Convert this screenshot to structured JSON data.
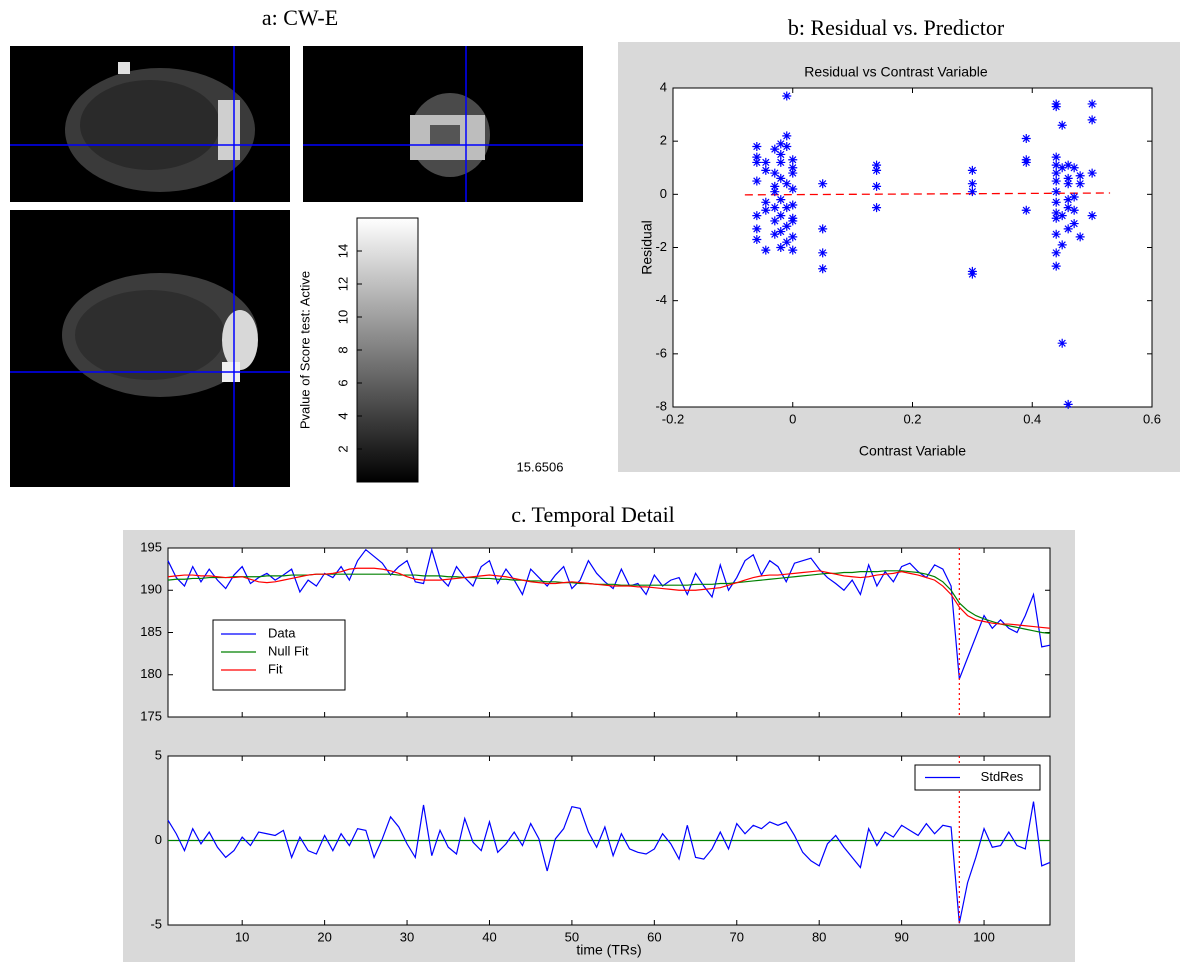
{
  "brain_views": {
    "title": "a: CW-E",
    "colorbar": {
      "label": "Pvalue of Score test: Active",
      "lim": [
        0,
        16
      ],
      "ticks": [
        2,
        4,
        6,
        8,
        10,
        12,
        14
      ]
    },
    "value_label": "15.6506"
  },
  "chart_data": [
    {
      "type": "scatter",
      "panel_title": "b: Residual vs. Predictor",
      "title": "Residual vs Contrast Variable",
      "x_label": "Contrast Variable",
      "y_label": "Residual",
      "xlim": [
        -0.2,
        0.6
      ],
      "xticks": [
        -0.2,
        0,
        0.2,
        0.4,
        0.6
      ],
      "ylim": [
        -8,
        4
      ],
      "yticks": [
        -8,
        -6,
        -4,
        -2,
        0,
        2,
        4
      ],
      "color": "#0000ff",
      "x": [
        -0.06,
        -0.06,
        -0.06,
        -0.06,
        -0.06,
        -0.06,
        -0.06,
        -0.045,
        -0.045,
        -0.045,
        -0.045,
        -0.045,
        -0.03,
        -0.03,
        -0.03,
        -0.03,
        -0.03,
        -0.03,
        -0.03,
        -0.02,
        -0.02,
        -0.02,
        -0.02,
        -0.02,
        -0.02,
        -0.02,
        -0.02,
        -0.01,
        -0.01,
        -0.01,
        -0.01,
        -0.01,
        -0.01,
        -0.01,
        0,
        0,
        0,
        0,
        0,
        0,
        0,
        0,
        0,
        0.05,
        0.05,
        0.05,
        0.05,
        0.14,
        0.14,
        0.14,
        0.14,
        0.3,
        0.3,
        0.3,
        0.3,
        0.3,
        0.39,
        0.39,
        0.39,
        0.39,
        0.44,
        0.44,
        0.44,
        0.44,
        0.44,
        0.44,
        0.44,
        0.44,
        0.44,
        0.44,
        0.44,
        0.44,
        0.44,
        0.45,
        0.45,
        0.45,
        0.45,
        0.45,
        0.46,
        0.46,
        0.46,
        0.46,
        0.46,
        0.46,
        0.46,
        0.47,
        0.47,
        0.47,
        0.47,
        0.48,
        0.48,
        0.48,
        0.5,
        0.5,
        0.5,
        0.5
      ],
      "y": [
        1.8,
        1.4,
        1.2,
        0.5,
        -1.7,
        -1.3,
        -0.8,
        -2.1,
        -0.6,
        -0.3,
        1.2,
        0.9,
        1.7,
        0.8,
        0.3,
        -0.5,
        -1.5,
        -1.0,
        0.1,
        1.9,
        1.5,
        1.2,
        0.6,
        -0.8,
        -1.4,
        -2.0,
        -0.2,
        3.7,
        2.2,
        1.8,
        0.4,
        -0.5,
        -1.2,
        -1.8,
        1.0,
        0.8,
        0.2,
        -0.4,
        -0.9,
        -1.0,
        -1.6,
        -2.1,
        1.3,
        0.4,
        -1.3,
        -2.2,
        -2.8,
        1.1,
        0.9,
        0.3,
        -0.5,
        0.9,
        0.4,
        0.1,
        -2.9,
        -3.0,
        2.1,
        1.3,
        1.2,
        -0.6,
        3.4,
        3.3,
        1.4,
        1.1,
        0.8,
        0.5,
        -0.3,
        -0.7,
        -0.9,
        -1.5,
        -2.2,
        -2.7,
        0.1,
        2.6,
        1.0,
        -5.6,
        -1.9,
        -0.8,
        1.1,
        0.6,
        -0.2,
        -0.5,
        -1.3,
        -7.9,
        0.4,
        1.0,
        -0.1,
        -0.6,
        -1.1,
        0.7,
        0.4,
        -1.6,
        3.4,
        2.8,
        0.8,
        -0.8
      ],
      "fit": {
        "x": [
          -0.08,
          0.53
        ],
        "y": [
          -0.02,
          0.05
        ],
        "color": "#ff0000"
      }
    },
    {
      "type": "line",
      "panel_title": "c. Temporal Detail",
      "xlim": [
        1,
        108
      ],
      "xticks": [
        10,
        20,
        30,
        40,
        50,
        60,
        70,
        80,
        90,
        100
      ],
      "show_xtick_labels": false,
      "ylim": [
        175,
        195
      ],
      "yticks": [
        175,
        180,
        185,
        190,
        195
      ],
      "legend": "center left",
      "vline": {
        "value": 97,
        "color": "#ff0000"
      },
      "x": [
        1,
        2,
        3,
        4,
        5,
        6,
        7,
        8,
        9,
        10,
        11,
        12,
        13,
        14,
        15,
        16,
        17,
        18,
        19,
        20,
        21,
        22,
        23,
        24,
        25,
        26,
        27,
        28,
        29,
        30,
        31,
        32,
        33,
        34,
        35,
        36,
        37,
        38,
        39,
        40,
        41,
        42,
        43,
        44,
        45,
        46,
        47,
        48,
        49,
        50,
        51,
        52,
        53,
        54,
        55,
        56,
        57,
        58,
        59,
        60,
        61,
        62,
        63,
        64,
        65,
        66,
        67,
        68,
        69,
        70,
        71,
        72,
        73,
        74,
        75,
        76,
        77,
        78,
        79,
        80,
        81,
        82,
        83,
        84,
        85,
        86,
        87,
        88,
        89,
        90,
        91,
        92,
        93,
        94,
        95,
        96,
        97,
        98,
        99,
        100,
        101,
        102,
        103,
        104,
        105,
        106,
        107,
        108
      ],
      "series": [
        {
          "name": "Data",
          "color": "#0000ff",
          "values": [
            193.5,
            191.5,
            190.5,
            192.8,
            191,
            192.5,
            191.2,
            190.2,
            191.8,
            192.8,
            190.8,
            191.5,
            192,
            191.2,
            191.8,
            192.5,
            189.8,
            191.2,
            190.5,
            192,
            191.5,
            192.8,
            191.2,
            193.5,
            194.8,
            194,
            193.2,
            191.8,
            192.8,
            193.5,
            191,
            190.8,
            194.8,
            191.5,
            190.5,
            192.8,
            191.5,
            190.5,
            192.8,
            193.5,
            190.8,
            192.5,
            191.2,
            189.5,
            192.5,
            191.5,
            190.5,
            191.8,
            192.8,
            190.2,
            191.2,
            193.5,
            192,
            191,
            190.2,
            192.5,
            190.5,
            190.8,
            189.5,
            191.8,
            190.5,
            191.2,
            191.5,
            189.5,
            192,
            190.5,
            189.2,
            193,
            190,
            191.5,
            193.5,
            194.2,
            191.8,
            193.5,
            192.8,
            191,
            193.2,
            193.5,
            193.8,
            192.5,
            191.5,
            190.8,
            190,
            191.2,
            189.5,
            193,
            190.5,
            192.2,
            191,
            192.8,
            193.2,
            192.2,
            191.5,
            193,
            192.5,
            190.5,
            179.5,
            182,
            184.5,
            187,
            185.5,
            186.5,
            185.5,
            185,
            187,
            189.5,
            183.3,
            183.5
          ]
        },
        {
          "name": "Null Fit",
          "color": "#008000",
          "values": [
            191.2,
            191.3,
            191.3,
            191.4,
            191.4,
            191.5,
            191.5,
            191.5,
            191.6,
            191.6,
            191.6,
            191.6,
            191.7,
            191.7,
            191.7,
            191.8,
            191.8,
            191.8,
            191.9,
            191.9,
            191.9,
            191.9,
            191.9,
            191.9,
            191.9,
            191.9,
            191.9,
            191.9,
            191.8,
            191.8,
            191.8,
            191.7,
            191.7,
            191.7,
            191.6,
            191.6,
            191.5,
            191.5,
            191.4,
            191.4,
            191.3,
            191.3,
            191.2,
            191.2,
            191.1,
            191.1,
            191.0,
            191.0,
            190.9,
            190.9,
            190.8,
            190.8,
            190.7,
            190.7,
            190.7,
            190.6,
            190.6,
            190.6,
            190.6,
            190.6,
            190.6,
            190.6,
            190.6,
            190.6,
            190.7,
            190.7,
            190.7,
            190.8,
            190.8,
            190.9,
            191.0,
            191.1,
            191.2,
            191.3,
            191.4,
            191.5,
            191.6,
            191.7,
            191.8,
            191.9,
            192.0,
            192.0,
            192.1,
            192.1,
            192.2,
            192.2,
            192.2,
            192.3,
            192.3,
            192.3,
            192.2,
            192.1,
            191.9,
            191.6,
            191.0,
            190.0,
            188.5,
            187.6,
            187.0,
            186.6,
            186.3,
            186.0,
            185.8,
            185.6,
            185.4,
            185.2,
            185.0,
            184.9
          ]
        },
        {
          "name": "Fit",
          "color": "#ff0000",
          "values": [
            191.6,
            191.7,
            191.8,
            191.8,
            191.7,
            191.7,
            191.6,
            191.5,
            191.5,
            191.6,
            191.3,
            191.0,
            190.9,
            191.0,
            191.2,
            191.4,
            191.6,
            191.8,
            191.9,
            191.9,
            192.0,
            192.2,
            192.5,
            192.6,
            192.6,
            192.6,
            192.5,
            192.3,
            192.0,
            191.6,
            191.3,
            191.2,
            191.2,
            191.2,
            191.3,
            191.4,
            191.5,
            191.6,
            191.7,
            191.8,
            191.7,
            191.6,
            191.4,
            191.2,
            191.0,
            190.9,
            190.8,
            190.8,
            190.9,
            191.0,
            190.9,
            190.8,
            190.7,
            190.6,
            190.5,
            190.5,
            190.5,
            190.4,
            190.4,
            190.3,
            190.2,
            190.1,
            190.0,
            190.0,
            190.0,
            190.1,
            190.2,
            190.3,
            190.6,
            190.9,
            191.2,
            191.5,
            191.7,
            191.8,
            191.8,
            191.9,
            192.0,
            192.1,
            192.2,
            192.3,
            192.1,
            191.9,
            191.7,
            191.6,
            191.5,
            191.6,
            191.8,
            191.9,
            192.0,
            192.2,
            192.0,
            191.8,
            191.5,
            191.2,
            190.5,
            189.5,
            188.0,
            187.0,
            186.5,
            186.3,
            186.1,
            186.0,
            186.0,
            185.9,
            185.8,
            185.7,
            185.6,
            185.5
          ]
        }
      ]
    },
    {
      "type": "line",
      "x_label": "time (TRs)",
      "xlim": [
        1,
        108
      ],
      "xticks": [
        10,
        20,
        30,
        40,
        50,
        60,
        70,
        80,
        90,
        100
      ],
      "show_xtick_labels": true,
      "ylim": [
        -5,
        5
      ],
      "yticks": [
        -5,
        0,
        5
      ],
      "legend": "upper right",
      "vline": {
        "value": 97,
        "color": "#ff0000"
      },
      "reference_line": {
        "value": 0,
        "color": "#008000"
      },
      "x": [
        1,
        2,
        3,
        4,
        5,
        6,
        7,
        8,
        9,
        10,
        11,
        12,
        13,
        14,
        15,
        16,
        17,
        18,
        19,
        20,
        21,
        22,
        23,
        24,
        25,
        26,
        27,
        28,
        29,
        30,
        31,
        32,
        33,
        34,
        35,
        36,
        37,
        38,
        39,
        40,
        41,
        42,
        43,
        44,
        45,
        46,
        47,
        48,
        49,
        50,
        51,
        52,
        53,
        54,
        55,
        56,
        57,
        58,
        59,
        60,
        61,
        62,
        63,
        64,
        65,
        66,
        67,
        68,
        69,
        70,
        71,
        72,
        73,
        74,
        75,
        76,
        77,
        78,
        79,
        80,
        81,
        82,
        83,
        84,
        85,
        86,
        87,
        88,
        89,
        90,
        91,
        92,
        93,
        94,
        95,
        96,
        97,
        98,
        99,
        100,
        101,
        102,
        103,
        104,
        105,
        106,
        107,
        108
      ],
      "series": [
        {
          "name": "StdRes",
          "color": "#0000ff",
          "values": [
            1.2,
            0.4,
            -0.6,
            0.7,
            -0.2,
            0.5,
            -0.4,
            -1.0,
            -0.6,
            0.2,
            -0.3,
            0.5,
            0.4,
            0.3,
            0.6,
            -1.0,
            0.2,
            -0.6,
            -0.8,
            0.3,
            -0.6,
            0.4,
            -0.3,
            0.7,
            0.6,
            -1.0,
            0.1,
            1.4,
            0.8,
            -0.2,
            -1.0,
            2.1,
            -0.9,
            0.6,
            -0.4,
            -0.8,
            1.3,
            -0.1,
            -0.6,
            1.1,
            -0.7,
            -0.2,
            0.5,
            -0.3,
            1.0,
            0.1,
            -1.8,
            0.1,
            0.7,
            2.0,
            1.9,
            0.5,
            -0.4,
            0.8,
            -0.9,
            0.4,
            -0.5,
            -0.7,
            -0.8,
            -0.5,
            0.4,
            -0.2,
            -1.1,
            0.9,
            -1.0,
            -1.1,
            -0.5,
            0.5,
            -0.5,
            1.0,
            0.4,
            0.9,
            0.7,
            1.1,
            0.9,
            1.1,
            0.3,
            -0.7,
            -1.2,
            -1.5,
            -0.2,
            0.3,
            -0.4,
            -1.0,
            -1.6,
            0.7,
            -0.3,
            0.5,
            0.2,
            0.9,
            0.6,
            0.3,
            1.0,
            0.4,
            0.9,
            0.8,
            -4.9,
            -2.5,
            -1.0,
            0.7,
            -0.4,
            -0.3,
            0.5,
            -0.3,
            -0.5,
            2.3,
            -1.5,
            -1.3
          ]
        }
      ]
    }
  ]
}
